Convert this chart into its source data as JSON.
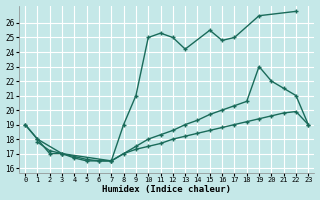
{
  "xlabel": "Humidex (Indice chaleur)",
  "background_color": "#c5e8e8",
  "grid_color": "#ffffff",
  "line_color": "#1a6b5a",
  "xlim": [
    -0.5,
    23.5
  ],
  "ylim": [
    15.7,
    27.2
  ],
  "yticks": [
    16,
    17,
    18,
    19,
    20,
    21,
    22,
    23,
    24,
    25,
    26
  ],
  "xticks": [
    0,
    1,
    2,
    3,
    4,
    5,
    6,
    7,
    8,
    9,
    10,
    11,
    12,
    13,
    14,
    15,
    16,
    17,
    18,
    19,
    20,
    21,
    22,
    23
  ],
  "line1_x": [
    0,
    1,
    2,
    3,
    4,
    5,
    6,
    7,
    8,
    9,
    10,
    11,
    12,
    13,
    15,
    16,
    17,
    19,
    22
  ],
  "line1_y": [
    19,
    18,
    17,
    17,
    16.7,
    16.5,
    16.5,
    16.5,
    19.0,
    21.0,
    25.0,
    25.3,
    25.0,
    24.2,
    25.5,
    24.8,
    25.0,
    26.5,
    26.8
  ],
  "line2_x": [
    0,
    1,
    3,
    7,
    9,
    10,
    11,
    12,
    13,
    14,
    15,
    16,
    17,
    18,
    19,
    20,
    21,
    22,
    23
  ],
  "line2_y": [
    19,
    18,
    17,
    16.5,
    17.5,
    18.0,
    18.3,
    18.6,
    19.0,
    19.3,
    19.7,
    20.0,
    20.3,
    20.6,
    23.0,
    22.0,
    21.5,
    21.0,
    19.0
  ],
  "line3_x": [
    1,
    2,
    3,
    4,
    5,
    6,
    7,
    8,
    9,
    10,
    11,
    12,
    13,
    14,
    15,
    16,
    17,
    18,
    19,
    20,
    21,
    22,
    23
  ],
  "line3_y": [
    17.8,
    17.2,
    17.0,
    16.8,
    16.6,
    16.5,
    16.5,
    17.0,
    17.3,
    17.5,
    17.7,
    18.0,
    18.2,
    18.4,
    18.6,
    18.8,
    19.0,
    19.2,
    19.4,
    19.6,
    19.8,
    19.9,
    19.0
  ]
}
